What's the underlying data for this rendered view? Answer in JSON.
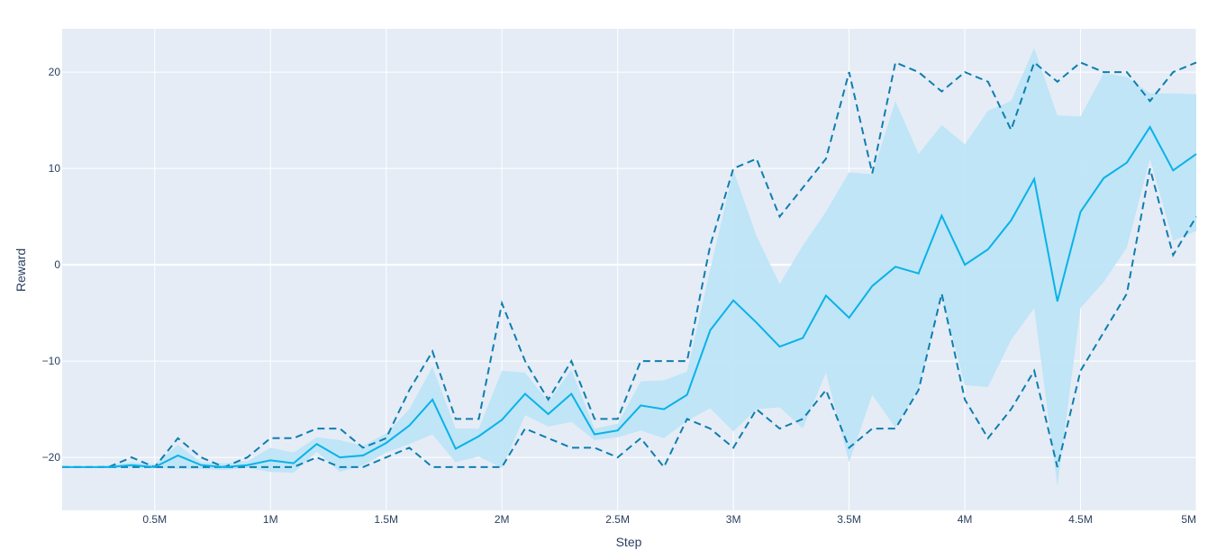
{
  "chart_data": {
    "type": "line",
    "xlabel": "Step",
    "ylabel": "Reward",
    "xlim": [
      100000,
      5000000
    ],
    "ylim": [
      -25.5,
      24.5
    ],
    "x_ticks": [
      {
        "value": 500000,
        "label": "0.5M"
      },
      {
        "value": 1000000,
        "label": "1M"
      },
      {
        "value": 1500000,
        "label": "1.5M"
      },
      {
        "value": 2000000,
        "label": "2M"
      },
      {
        "value": 2500000,
        "label": "2.5M"
      },
      {
        "value": 3000000,
        "label": "3M"
      },
      {
        "value": 3500000,
        "label": "3.5M"
      },
      {
        "value": 4000000,
        "label": "4M"
      },
      {
        "value": 4500000,
        "label": "4.5M"
      },
      {
        "value": 5000000,
        "label": "5M"
      }
    ],
    "y_ticks": [
      {
        "value": 20,
        "label": "20"
      },
      {
        "value": 10,
        "label": "10"
      },
      {
        "value": 0,
        "label": "0"
      },
      {
        "value": -10,
        "label": "−10"
      },
      {
        "value": -20,
        "label": "−20"
      }
    ],
    "grid": true,
    "legend": "none",
    "x": [
      100000,
      200000,
      300000,
      400000,
      500000,
      600000,
      700000,
      800000,
      900000,
      1000000,
      1100000,
      1200000,
      1300000,
      1400000,
      1500000,
      1600000,
      1700000,
      1800000,
      1900000,
      2000000,
      2100000,
      2200000,
      2300000,
      2400000,
      2500000,
      2600000,
      2700000,
      2800000,
      2900000,
      3000000,
      3100000,
      3200000,
      3300000,
      3400000,
      3500000,
      3600000,
      3700000,
      3800000,
      3900000,
      4000000,
      4100000,
      4200000,
      4300000,
      4400000,
      4500000,
      4600000,
      4700000,
      4800000,
      4900000,
      5000000
    ],
    "series": [
      {
        "role": "mean",
        "style": "solid",
        "values": [
          -21,
          -21,
          -21,
          -20.8,
          -21,
          -19.8,
          -20.8,
          -21,
          -20.8,
          -20.3,
          -20.6,
          -18.6,
          -20,
          -19.8,
          -18.5,
          -16.7,
          -14,
          -19.1,
          -17.8,
          -16.1,
          -13.4,
          -15.5,
          -13.4,
          -17.6,
          -17.2,
          -14.6,
          -15,
          -13.5,
          -6.8,
          -3.7,
          -6,
          -8.5,
          -7.6,
          -3.2,
          -5.5,
          -2.2,
          -0.2,
          -0.9,
          5.1,
          0,
          1.6,
          4.6,
          8.9,
          -3.8,
          5.5,
          9,
          10.6,
          14.3,
          9.8,
          11.5
        ]
      },
      {
        "role": "band-upper",
        "style": "fill",
        "values": [
          -21,
          -21,
          -20.8,
          -20.5,
          -20.7,
          -18.7,
          -20.5,
          -20.6,
          -20.4,
          -19,
          -19.5,
          -17.9,
          -18.2,
          -18.8,
          -17.5,
          -15,
          -10.6,
          -17,
          -17,
          -11,
          -11.2,
          -14.2,
          -10.9,
          -17,
          -16.5,
          -12.1,
          -12,
          -11.1,
          -0.5,
          9.8,
          3,
          -2,
          2,
          5.5,
          9.6,
          9.4,
          17,
          11.5,
          14.5,
          12.5,
          16,
          17,
          22.5,
          15.5,
          15.4,
          19.9,
          19.5,
          17.8,
          17.8,
          17.7
        ]
      },
      {
        "role": "band-lower",
        "style": "fill",
        "values": [
          -21,
          -21,
          -21.1,
          -21.1,
          -21.1,
          -21.2,
          -21.2,
          -21.3,
          -21.1,
          -21.5,
          -21.6,
          -19.4,
          -21.5,
          -20.8,
          -19.5,
          -18.6,
          -17.6,
          -20.5,
          -19.9,
          -21.1,
          -15.6,
          -16.8,
          -16.3,
          -18.2,
          -17.9,
          -17.2,
          -18,
          -16.2,
          -14.9,
          -17.3,
          -15,
          -14.8,
          -17,
          -11.2,
          -20.5,
          -13.5,
          -16.9,
          -12.8,
          -3.2,
          -12.5,
          -12.7,
          -7.8,
          -4.5,
          -23,
          -4.5,
          -1.8,
          1.8,
          11,
          2.5,
          3.5
        ]
      },
      {
        "role": "max",
        "style": "dashed",
        "values": [
          -21,
          -21,
          -21,
          -20,
          -21,
          -18,
          -20,
          -21,
          -20,
          -18,
          -18,
          -17,
          -17,
          -19,
          -18,
          -13,
          -9,
          -16,
          -16,
          -4,
          -10,
          -14,
          -10,
          -16,
          -16,
          -10,
          -10,
          -10,
          2,
          10,
          11,
          5,
          8,
          11,
          20,
          9.5,
          21,
          20,
          18,
          20,
          19,
          14,
          21,
          19,
          21,
          20,
          20,
          17,
          20,
          21
        ]
      },
      {
        "role": "min",
        "style": "dashed",
        "values": [
          -21,
          -21,
          -21,
          -21,
          -21,
          -21,
          -21,
          -21,
          -21,
          -21,
          -21,
          -20,
          -21,
          -21,
          -20,
          -19,
          -21,
          -21,
          -21,
          -21,
          -17,
          -18,
          -19,
          -19,
          -20,
          -18,
          -21,
          -16,
          -17,
          -19,
          -15,
          -17,
          -16,
          -13,
          -19,
          -17,
          -17,
          -13,
          -3,
          -14,
          -18,
          -15,
          -11,
          -21,
          -11,
          -7,
          -3,
          10,
          1,
          5
        ]
      }
    ],
    "colors": {
      "plot_bg": "#e5ecf6",
      "grid": "#ffffff",
      "mean_line": "#09b2e8",
      "band_fill": "#bde5f7",
      "minmax_line": "#0e7eaf",
      "tick_text": "#2a3f5f"
    }
  }
}
